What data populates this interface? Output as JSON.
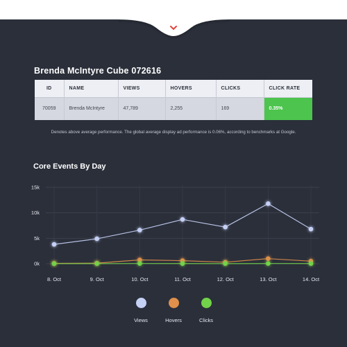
{
  "report": {
    "title": "Brenda McIntyre Cube 072616"
  },
  "table": {
    "headers": [
      "ID",
      "NAME",
      "VIEWS",
      "HOVERS",
      "CLICKS",
      "CLICK RATE"
    ],
    "row": [
      "70059",
      "Brenda McIntyre",
      "47,789",
      "2,255",
      "169",
      "0.35%"
    ]
  },
  "note": "Denotes above average performance. The global average display ad performance is 0.06%, according to benchmarks at Google.",
  "chart_title": "Core Events By Day",
  "chart_data": {
    "type": "line",
    "title": "Core Events By Day",
    "x": [
      "8. Oct",
      "9. Oct",
      "10. Oct",
      "11. Oct",
      "12. Oct",
      "13. Oct",
      "14. Oct"
    ],
    "y_ticks": [
      "0k",
      "5k",
      "10k",
      "15k"
    ],
    "ylim": [
      0,
      15000
    ],
    "grid": true,
    "legend_position": "bottom",
    "series": [
      {
        "name": "Views",
        "color": "#c5d0f5",
        "values": [
          3800,
          4900,
          6600,
          8700,
          7200,
          11800,
          6800
        ]
      },
      {
        "name": "Hovers",
        "color": "#e0904b",
        "values": [
          80,
          120,
          750,
          600,
          300,
          1000,
          500
        ]
      },
      {
        "name": "Clicks",
        "color": "#72d24a",
        "values": [
          10,
          20,
          40,
          30,
          20,
          40,
          30
        ]
      }
    ]
  },
  "legend": [
    {
      "label": "Views",
      "color": "#c5d0f5"
    },
    {
      "label": "Hovers",
      "color": "#e0904b"
    },
    {
      "label": "Clicks",
      "color": "#72d24a"
    }
  ],
  "colors": {
    "background": "#2b2f3a",
    "accent_red": "#e0433a",
    "rate_green": "#4cc44d"
  },
  "icons": {
    "notch_toggle": "chevron-down-icon"
  }
}
